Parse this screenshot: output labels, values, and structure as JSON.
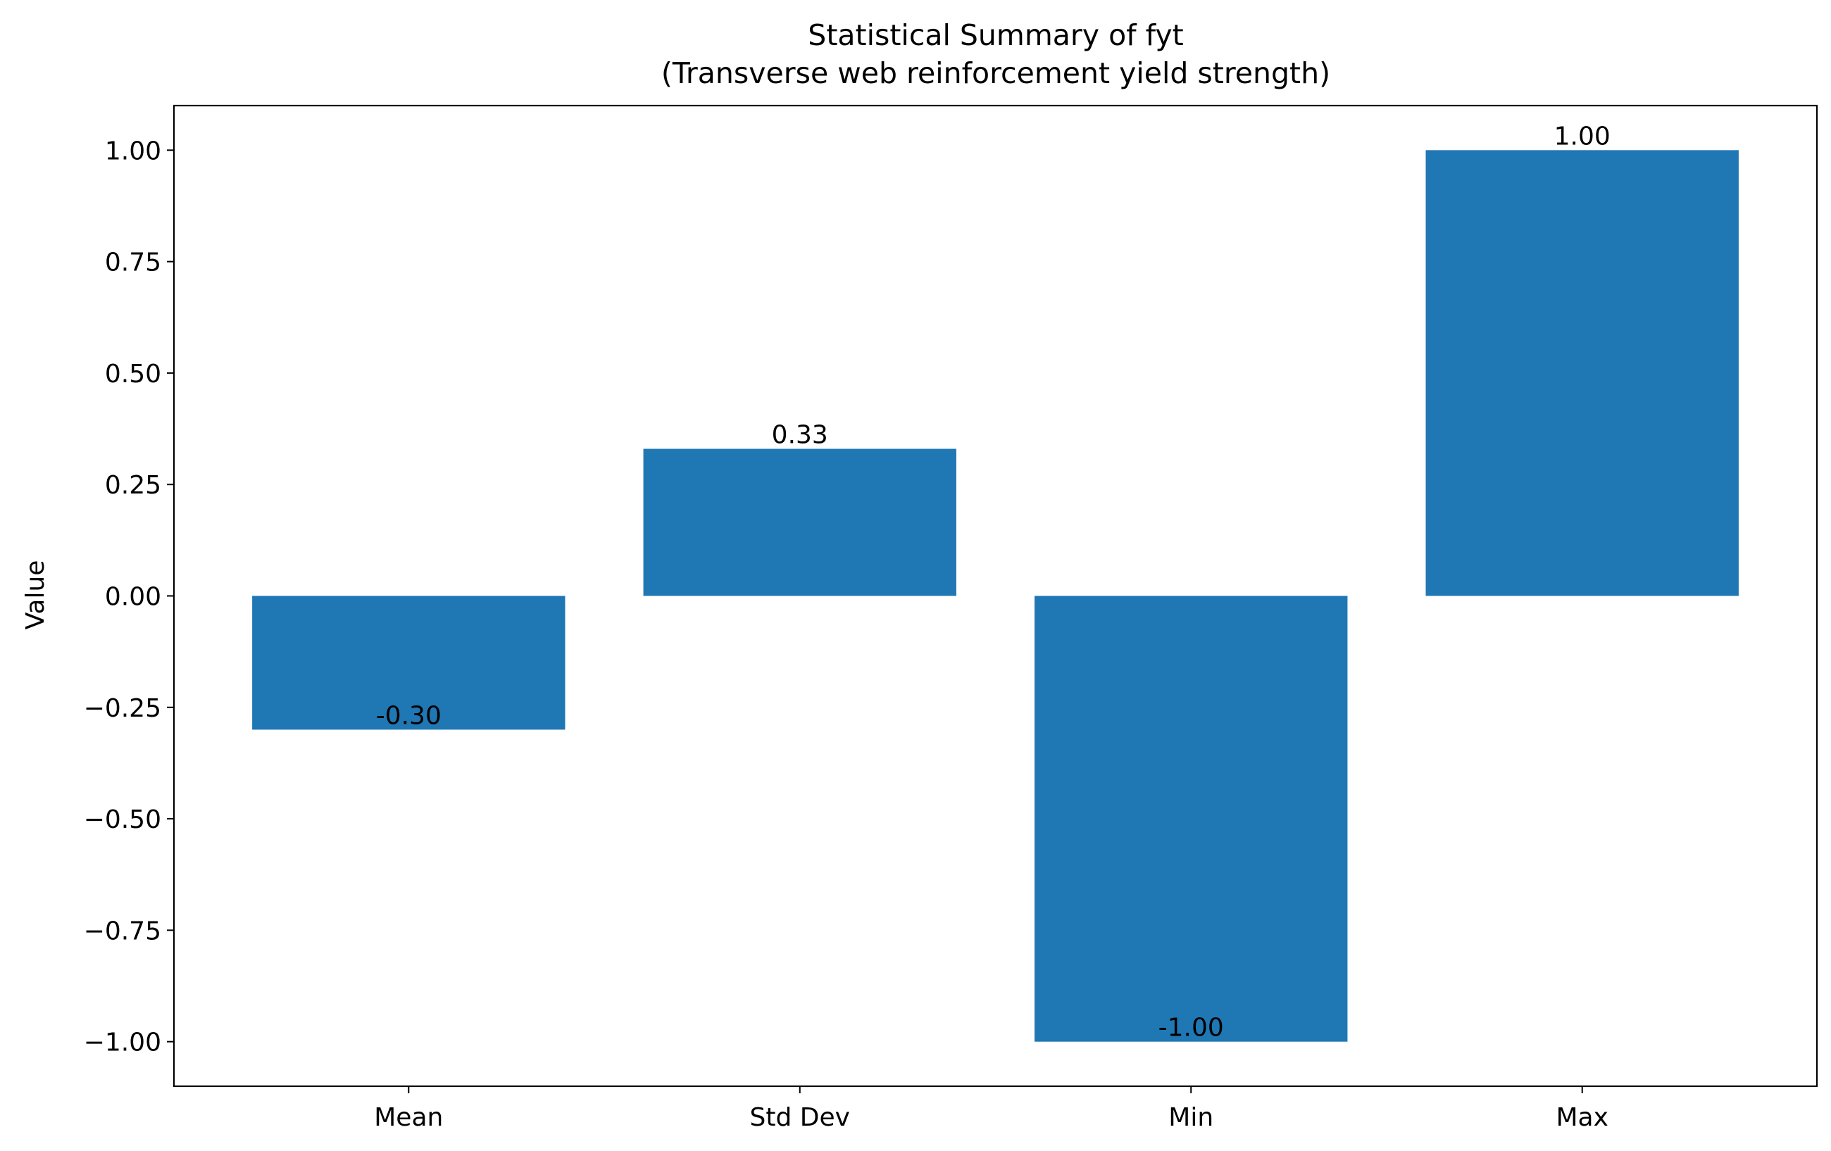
{
  "chart_data": {
    "type": "bar",
    "title": "Statistical Summary of fyt",
    "subtitle": "(Transverse web reinforcement yield strength)",
    "xlabel": "",
    "ylabel": "Value",
    "categories": [
      "Mean",
      "Std Dev",
      "Min",
      "Max"
    ],
    "values": [
      -0.3,
      0.33,
      -1.0,
      1.0
    ],
    "data_labels": [
      "-0.30",
      "0.33",
      "-1.00",
      "1.00"
    ],
    "ylim": [
      -1.1,
      1.1
    ],
    "yticks": [
      1.0,
      0.75,
      0.5,
      0.25,
      0.0,
      -0.25,
      -0.5,
      -0.75,
      -1.0
    ],
    "ytick_labels": [
      "1.00",
      "0.75",
      "0.50",
      "0.25",
      "0.00",
      "−0.25",
      "−0.50",
      "−0.75",
      "−1.00"
    ],
    "bar_color": "#1f77b4",
    "grid": false,
    "legend": "none"
  }
}
